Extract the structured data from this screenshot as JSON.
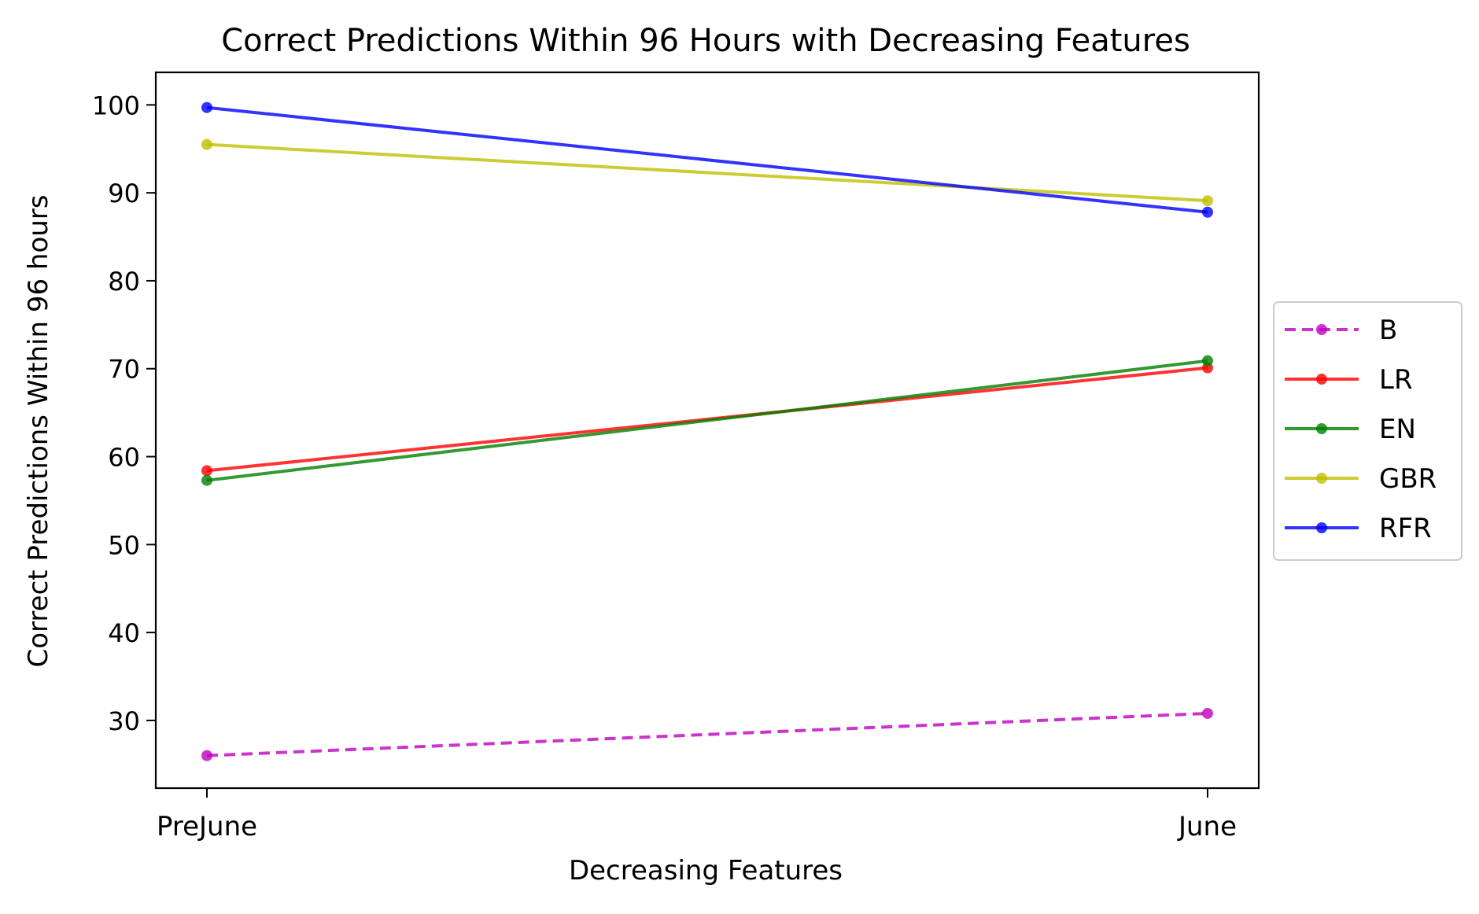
{
  "chart_data": {
    "type": "line",
    "title": "Correct Predictions Within 96 Hours with Decreasing Features",
    "xlabel": "Decreasing Features",
    "ylabel": "Correct Predictions Within 96 hours",
    "categories": [
      "PreJune",
      "June"
    ],
    "ylim": [
      22.3,
      103.7
    ],
    "yticks": [
      30,
      40,
      50,
      60,
      70,
      80,
      90,
      100
    ],
    "grid": false,
    "legend_position": "center-right, outside plot",
    "series": [
      {
        "name": "B",
        "values": [
          26.0,
          30.8
        ],
        "color": "#bf00bf",
        "dashed": true
      },
      {
        "name": "LR",
        "values": [
          58.4,
          70.1
        ],
        "color": "#ff0000",
        "dashed": false
      },
      {
        "name": "EN",
        "values": [
          57.3,
          70.9
        ],
        "color": "#008000",
        "dashed": false
      },
      {
        "name": "GBR",
        "values": [
          95.5,
          89.1
        ],
        "color": "#bfbf00",
        "dashed": false
      },
      {
        "name": "RFR",
        "values": [
          99.7,
          87.8
        ],
        "color": "#0000ff",
        "dashed": false
      }
    ]
  }
}
